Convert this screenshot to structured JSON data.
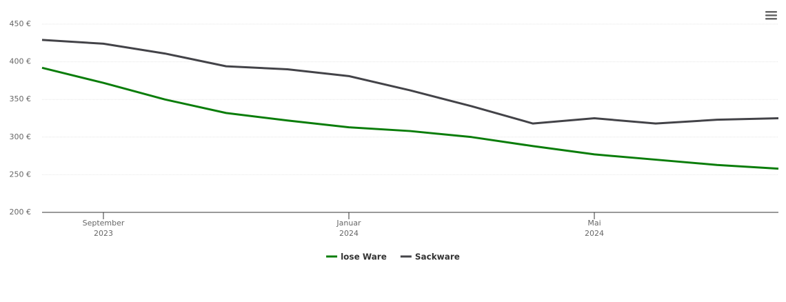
{
  "chart_data": {
    "type": "line",
    "x": [
      "2023-08",
      "2023-09",
      "2023-10",
      "2023-11",
      "2023-12",
      "2024-01",
      "2024-02",
      "2024-03",
      "2024-04",
      "2024-05",
      "2024-06",
      "2024-07",
      "2024-08"
    ],
    "series": [
      {
        "name": "lose Ware",
        "color": "#0a7d0a",
        "values": [
          392,
          372,
          350,
          332,
          322,
          313,
          308,
          300,
          288,
          277,
          270,
          263,
          258
        ]
      },
      {
        "name": "Sackware",
        "color": "#434348",
        "values": [
          429,
          424,
          411,
          394,
          390,
          381,
          362,
          341,
          318,
          325,
          318,
          323,
          325
        ]
      }
    ],
    "xlim": [
      "2023-08",
      "2024-08"
    ],
    "xticks": [
      {
        "value": "2023-09",
        "label": "September",
        "year": "2023"
      },
      {
        "value": "2024-01",
        "label": "Januar",
        "year": "2024"
      },
      {
        "value": "2024-05",
        "label": "Mai",
        "year": "2024"
      }
    ],
    "ylim": [
      200,
      450
    ],
    "yticks": [
      {
        "value": 200,
        "label": "200 €"
      },
      {
        "value": 250,
        "label": "250 €"
      },
      {
        "value": 300,
        "label": "300 €"
      },
      {
        "value": 350,
        "label": "350 €"
      },
      {
        "value": 400,
        "label": "400 €"
      },
      {
        "value": 450,
        "label": "450 €"
      }
    ],
    "grid": true,
    "legend": "bottom"
  }
}
